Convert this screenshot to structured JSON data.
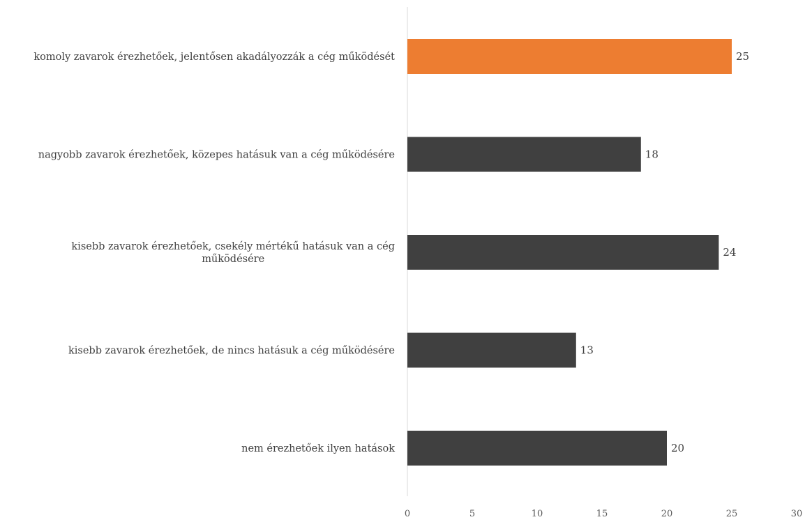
{
  "chart_data": {
    "type": "bar",
    "orientation": "horizontal",
    "title": "",
    "xlabel": "",
    "ylabel": "",
    "xlim": [
      0,
      30
    ],
    "x_ticks": [
      "0",
      "5",
      "10",
      "15",
      "20",
      "25",
      "30"
    ],
    "grid": false,
    "legend": "none",
    "categories": [
      [
        "komoly zavarok érezhetőek, jelentősen akadályozzák a cég működését"
      ],
      [
        "nagyobb zavarok érezhetőek, közepes hatásuk van a cég működésére"
      ],
      [
        "kisebb zavarok érezhetőek, csekély mértékű hatásuk van a cég",
        "működésére"
      ],
      [
        "kisebb zavarok érezhetőek, de nincs hatásuk a cég működésére"
      ],
      [
        "nem érezhetőek ilyen hatások"
      ]
    ],
    "values": [
      25,
      18,
      24,
      13,
      20
    ],
    "value_labels": [
      "25",
      "18",
      "24",
      "13",
      "20"
    ],
    "colors": [
      "#ED7D31",
      "#404040",
      "#404040",
      "#404040",
      "#404040"
    ],
    "axis_color": "#D9D9D9"
  }
}
